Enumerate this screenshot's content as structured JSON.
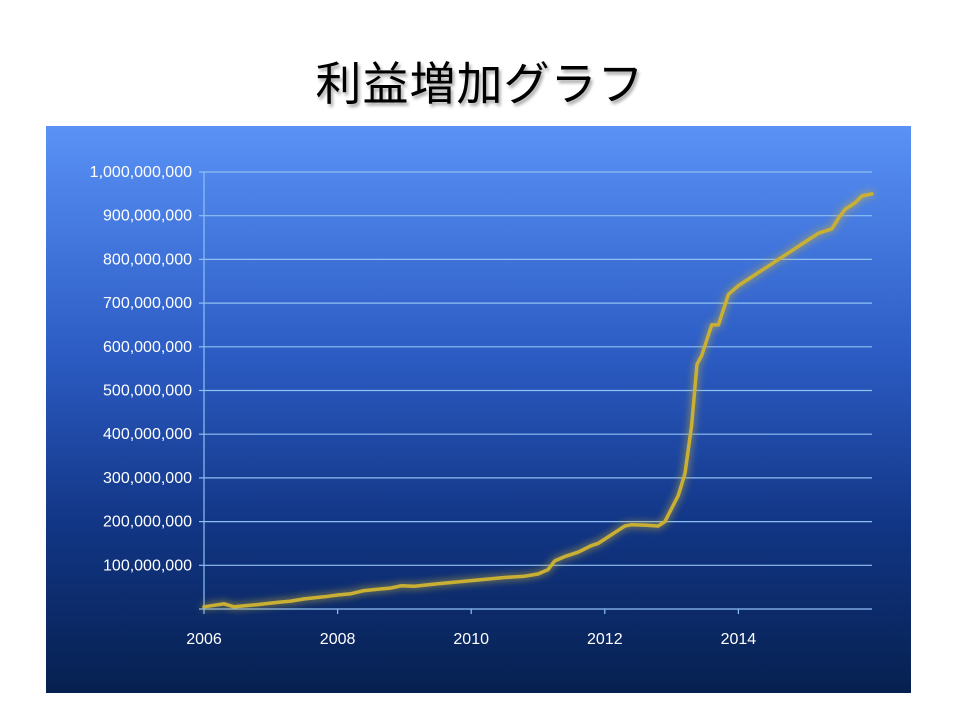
{
  "title": "利益増加グラフ",
  "chart_data": {
    "type": "line",
    "title": "利益増加グラフ",
    "xlim": [
      2006,
      2016
    ],
    "ylim": [
      0,
      1000000000
    ],
    "x_ticks": [
      "2006",
      "2008",
      "2010",
      "2012",
      "2014"
    ],
    "y_ticks": [
      "100,000,000",
      "200,000,000",
      "300,000,000",
      "400,000,000",
      "500,000,000",
      "600,000,000",
      "700,000,000",
      "800,000,000",
      "900,000,000",
      "1,000,000,000"
    ],
    "grid": true,
    "legend": "none",
    "line_color": "#c9b034",
    "series": [
      {
        "x": [
          2006.0,
          2006.3,
          2006.45,
          2006.8,
          2007.1,
          2007.3,
          2007.5,
          2007.8,
          2008.0,
          2008.2,
          2008.4,
          2008.6,
          2008.8,
          2008.95,
          2009.15,
          2009.5,
          2009.8,
          2010.0,
          2010.5,
          2010.8,
          2011.0,
          2011.15,
          2011.25,
          2011.4,
          2011.6,
          2011.8,
          2011.9,
          2012.0,
          2012.1,
          2012.2,
          2012.3,
          2012.4,
          2012.6,
          2012.8,
          2012.9,
          2013.0,
          2013.1,
          2013.2,
          2013.3,
          2013.38,
          2013.45,
          2013.6,
          2013.7,
          2013.85,
          2014.0,
          2014.2,
          2014.5,
          2014.8,
          2015.0,
          2015.2,
          2015.4,
          2015.5,
          2015.6,
          2015.75,
          2015.85,
          2016.0
        ],
        "y": [
          5000000,
          12000000,
          5000000,
          10000000,
          15000000,
          18000000,
          23000000,
          28000000,
          32000000,
          35000000,
          42000000,
          45000000,
          48000000,
          53000000,
          52000000,
          58000000,
          62000000,
          65000000,
          72000000,
          75000000,
          80000000,
          90000000,
          110000000,
          120000000,
          130000000,
          145000000,
          150000000,
          160000000,
          170000000,
          180000000,
          190000000,
          193000000,
          192000000,
          190000000,
          200000000,
          230000000,
          260000000,
          310000000,
          420000000,
          560000000,
          580000000,
          650000000,
          650000000,
          720000000,
          740000000,
          760000000,
          790000000,
          820000000,
          840000000,
          860000000,
          870000000,
          895000000,
          915000000,
          930000000,
          945000000,
          950000000
        ]
      }
    ]
  }
}
